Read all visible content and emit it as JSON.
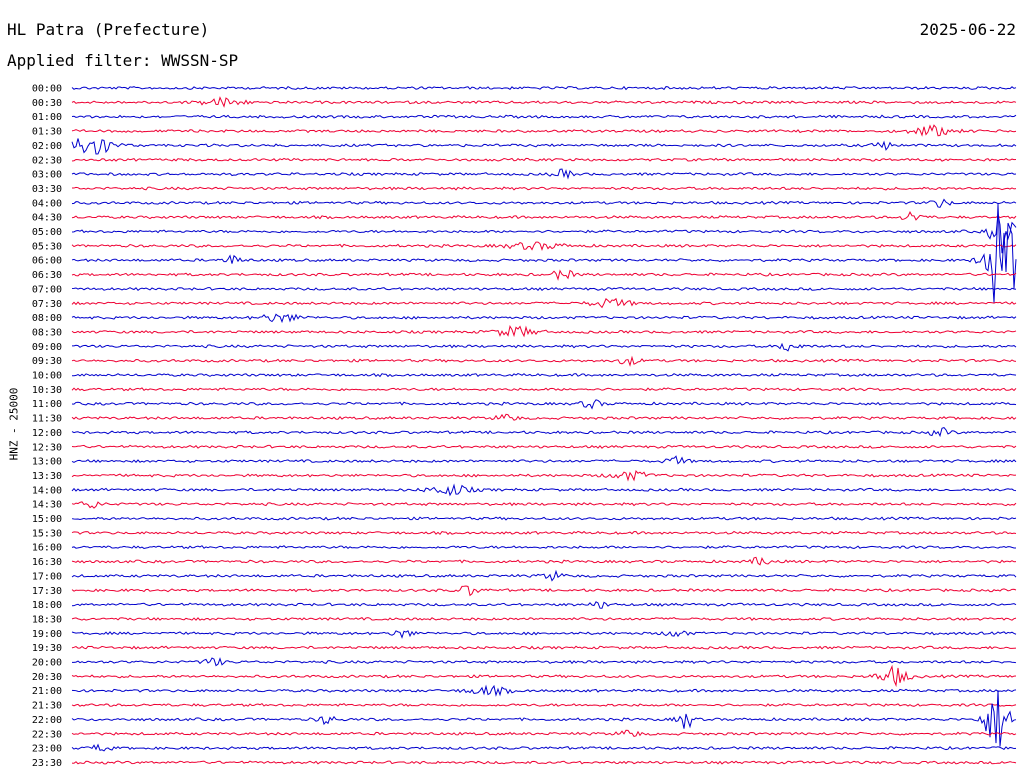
{
  "header": {
    "station": "HL Patra (Prefecture)",
    "date": "2025-06-22",
    "filter": "Applied filter: WWSSN-SP"
  },
  "chart_data": {
    "type": "line",
    "ylabel": "HNZ - 25000",
    "rows": [
      "00:00",
      "00:30",
      "01:00",
      "01:30",
      "02:00",
      "02:30",
      "03:00",
      "03:30",
      "04:00",
      "04:30",
      "05:00",
      "05:30",
      "06:00",
      "06:30",
      "07:00",
      "07:30",
      "08:00",
      "08:30",
      "09:00",
      "09:30",
      "10:00",
      "10:30",
      "11:00",
      "11:30",
      "12:00",
      "12:30",
      "13:00",
      "13:30",
      "14:00",
      "14:30",
      "15:00",
      "15:30",
      "16:00",
      "16:30",
      "17:00",
      "17:30",
      "18:00",
      "18:30",
      "19:00",
      "19:30",
      "20:00",
      "20:30",
      "21:00",
      "21:30",
      "22:00",
      "22:30",
      "23:00",
      "23:30"
    ],
    "colors": [
      "#0000cc",
      "#ee0033"
    ],
    "events": [
      {
        "row": 4,
        "pos": 0.02,
        "amp": 12,
        "width": 0.02
      },
      {
        "row": 1,
        "pos": 0.16,
        "amp": 4,
        "width": 0.02
      },
      {
        "row": 3,
        "pos": 0.91,
        "amp": 5,
        "width": 0.02
      },
      {
        "row": 4,
        "pos": 0.86,
        "amp": 4,
        "width": 0.01
      },
      {
        "row": 6,
        "pos": 0.52,
        "amp": 4,
        "width": 0.01
      },
      {
        "row": 8,
        "pos": 0.92,
        "amp": 4,
        "width": 0.01
      },
      {
        "row": 9,
        "pos": 0.89,
        "amp": 5,
        "width": 0.01
      },
      {
        "row": 10,
        "pos": 0.985,
        "amp": 28,
        "width": 0.01
      },
      {
        "row": 11,
        "pos": 0.49,
        "amp": 3,
        "width": 0.03
      },
      {
        "row": 12,
        "pos": 0.985,
        "amp": 60,
        "width": 0.015
      },
      {
        "row": 12,
        "pos": 0.17,
        "amp": 4,
        "width": 0.01
      },
      {
        "row": 13,
        "pos": 0.52,
        "amp": 5,
        "width": 0.01
      },
      {
        "row": 15,
        "pos": 0.57,
        "amp": 4,
        "width": 0.02
      },
      {
        "row": 16,
        "pos": 0.22,
        "amp": 4,
        "width": 0.02
      },
      {
        "row": 17,
        "pos": 0.47,
        "amp": 5,
        "width": 0.02
      },
      {
        "row": 18,
        "pos": 0.76,
        "amp": 5,
        "width": 0.01
      },
      {
        "row": 19,
        "pos": 0.59,
        "amp": 4,
        "width": 0.01
      },
      {
        "row": 22,
        "pos": 0.55,
        "amp": 4,
        "width": 0.01
      },
      {
        "row": 23,
        "pos": 0.46,
        "amp": 4,
        "width": 0.01
      },
      {
        "row": 24,
        "pos": 0.92,
        "amp": 4,
        "width": 0.01
      },
      {
        "row": 26,
        "pos": 0.64,
        "amp": 4,
        "width": 0.01
      },
      {
        "row": 27,
        "pos": 0.59,
        "amp": 4,
        "width": 0.02
      },
      {
        "row": 28,
        "pos": 0.4,
        "amp": 5,
        "width": 0.02
      },
      {
        "row": 29,
        "pos": 0.02,
        "amp": 4,
        "width": 0.01
      },
      {
        "row": 33,
        "pos": 0.73,
        "amp": 4,
        "width": 0.01
      },
      {
        "row": 34,
        "pos": 0.51,
        "amp": 4,
        "width": 0.01
      },
      {
        "row": 35,
        "pos": 0.42,
        "amp": 5,
        "width": 0.01
      },
      {
        "row": 36,
        "pos": 0.56,
        "amp": 3,
        "width": 0.01
      },
      {
        "row": 38,
        "pos": 0.35,
        "amp": 4,
        "width": 0.01
      },
      {
        "row": 38,
        "pos": 0.64,
        "amp": 4,
        "width": 0.01
      },
      {
        "row": 40,
        "pos": 0.15,
        "amp": 4,
        "width": 0.01
      },
      {
        "row": 41,
        "pos": 0.87,
        "amp": 9,
        "width": 0.015
      },
      {
        "row": 42,
        "pos": 0.44,
        "amp": 4,
        "width": 0.02
      },
      {
        "row": 44,
        "pos": 0.98,
        "amp": 32,
        "width": 0.012
      },
      {
        "row": 44,
        "pos": 0.65,
        "amp": 9,
        "width": 0.008
      },
      {
        "row": 44,
        "pos": 0.27,
        "amp": 4,
        "width": 0.01
      },
      {
        "row": 45,
        "pos": 0.59,
        "amp": 4,
        "width": 0.01
      },
      {
        "row": 46,
        "pos": 0.03,
        "amp": 3,
        "width": 0.01
      }
    ]
  }
}
